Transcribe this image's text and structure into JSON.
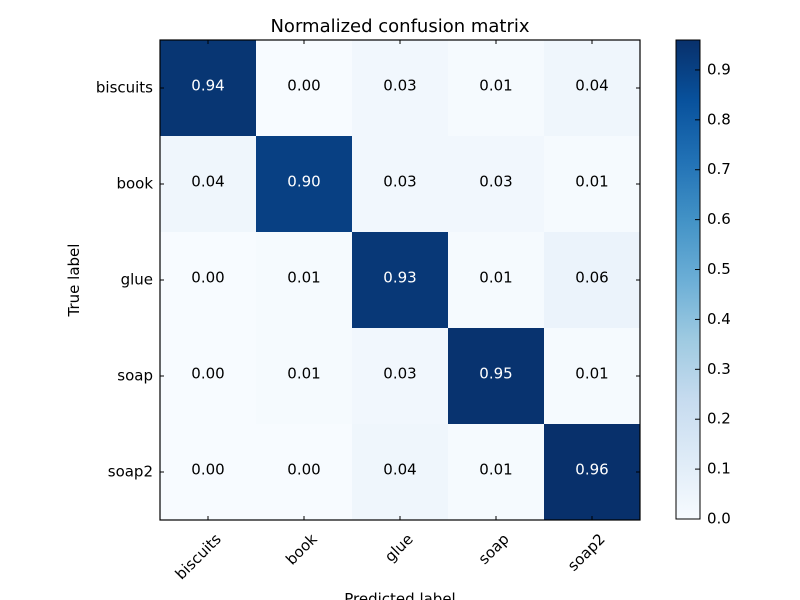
{
  "chart_data": {
    "type": "heatmap",
    "title": "Normalized confusion matrix",
    "xlabel": "Predicted label",
    "ylabel": "True label",
    "x_categories": [
      "biscuits",
      "book",
      "glue",
      "soap",
      "soap2"
    ],
    "y_categories": [
      "biscuits",
      "book",
      "glue",
      "soap",
      "soap2"
    ],
    "values": [
      [
        0.94,
        0.0,
        0.03,
        0.01,
        0.04
      ],
      [
        0.04,
        0.9,
        0.03,
        0.03,
        0.01
      ],
      [
        0.0,
        0.01,
        0.93,
        0.01,
        0.06
      ],
      [
        0.0,
        0.01,
        0.03,
        0.95,
        0.01
      ],
      [
        0.0,
        0.0,
        0.04,
        0.01,
        0.96
      ]
    ],
    "colormap": "Blues",
    "colorbar": {
      "ticks": [
        "0.0",
        "0.1",
        "0.2",
        "0.3",
        "0.4",
        "0.5",
        "0.6",
        "0.7",
        "0.8",
        "0.9"
      ]
    },
    "grid": false
  }
}
